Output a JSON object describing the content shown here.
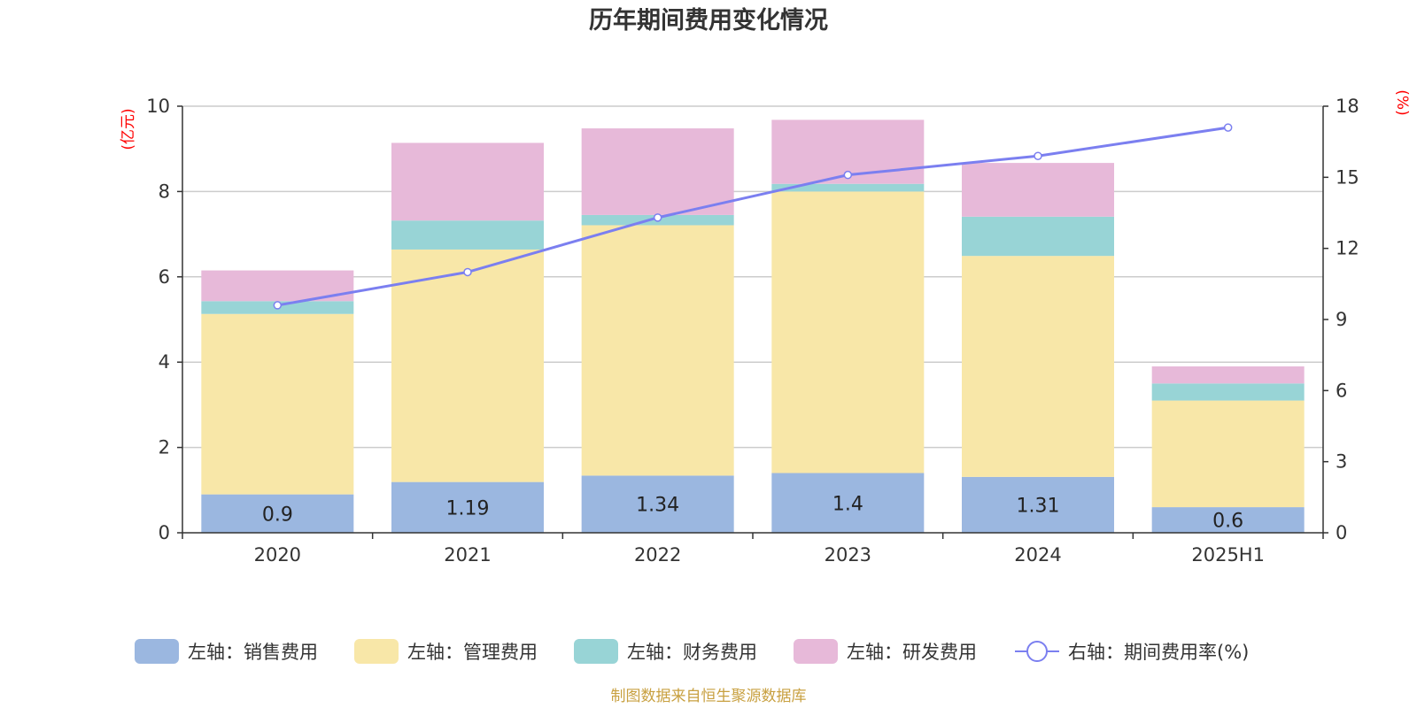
{
  "chart_data": {
    "type": "bar",
    "title": "历年期间费用变化情况",
    "categories": [
      "2020",
      "2021",
      "2022",
      "2023",
      "2024",
      "2025H1"
    ],
    "y_left": {
      "unit": "(亿元)",
      "ticks": [
        "0",
        "2",
        "4",
        "6",
        "8",
        "10"
      ],
      "range": [
        0,
        10
      ]
    },
    "y_right": {
      "unit": "(%)",
      "ticks": [
        "0",
        "3",
        "6",
        "9",
        "12",
        "15",
        "18"
      ],
      "range": [
        0,
        18
      ]
    },
    "series": [
      {
        "name": "左轴：销售费用",
        "axis": "left",
        "color": "#9bb7e0",
        "values": [
          0.9,
          1.19,
          1.34,
          1.4,
          1.31,
          0.6
        ],
        "labels": [
          "0.9",
          "1.19",
          "1.34",
          "1.4",
          "1.31",
          "0.6"
        ]
      },
      {
        "name": "左轴：管理费用",
        "axis": "left",
        "color": "#f8e7a8",
        "values": [
          4.23,
          5.45,
          5.87,
          6.6,
          5.18,
          2.5
        ]
      },
      {
        "name": "左轴：财务费用",
        "axis": "left",
        "color": "#98d4d6",
        "values": [
          0.3,
          0.68,
          0.24,
          0.18,
          0.92,
          0.4
        ]
      },
      {
        "name": "左轴：研发费用",
        "axis": "left",
        "color": "#e7b9d9",
        "values": [
          0.72,
          1.82,
          2.03,
          1.5,
          1.26,
          0.4
        ]
      },
      {
        "name": "右轴：期间费用率(%)",
        "axis": "right",
        "type": "line",
        "color": "#7b7ff0",
        "values": [
          9.6,
          11.0,
          13.3,
          15.1,
          15.9,
          17.1
        ]
      }
    ],
    "grid": true,
    "legend_position": "bottom"
  },
  "footer": {
    "source": "制图数据来自恒生聚源数据库"
  }
}
